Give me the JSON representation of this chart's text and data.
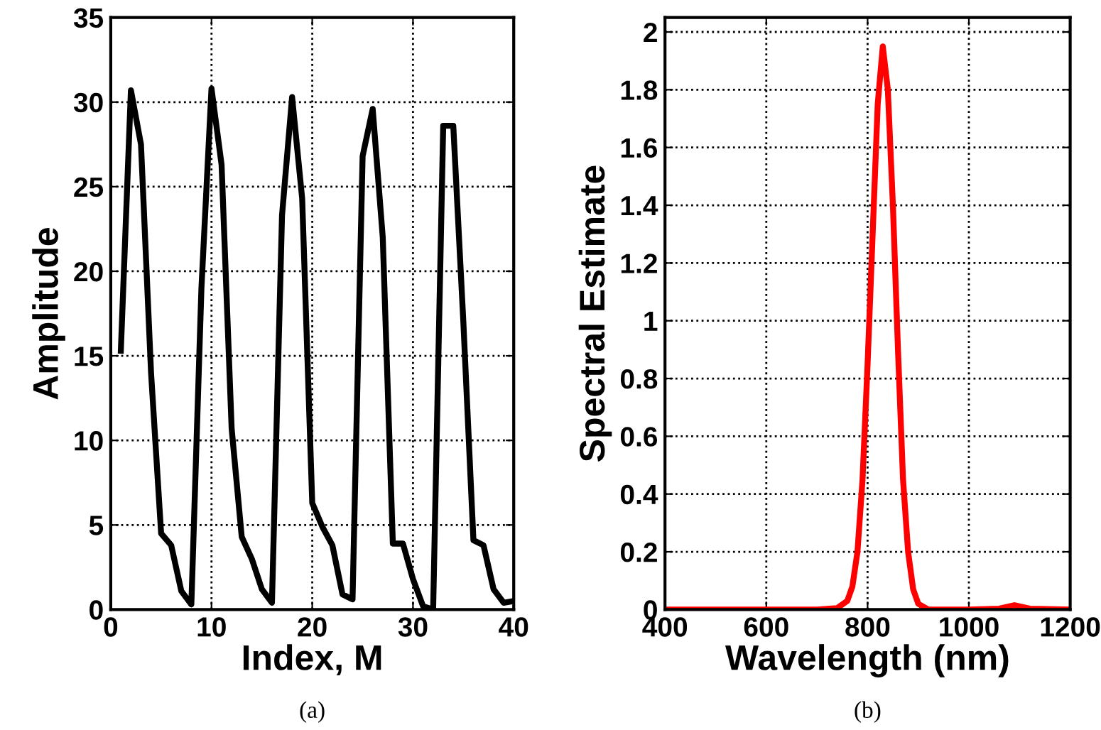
{
  "chart_data": [
    {
      "type": "line",
      "xlabel": "Index, M",
      "ylabel": "Amplitude",
      "annotations": [
        "(a)"
      ],
      "xlim": [
        0,
        40
      ],
      "ylim": [
        0,
        35
      ],
      "xticks": [
        0,
        10,
        20,
        30,
        40
      ],
      "yticks": [
        0,
        5,
        10,
        15,
        20,
        25,
        30,
        35
      ],
      "grid": true,
      "line_style": "solid",
      "series": [
        {
          "color": "#000000",
          "x": [
            1,
            2,
            3,
            4,
            5,
            6,
            7,
            8,
            9,
            10,
            11,
            12,
            13,
            14,
            15,
            16,
            17,
            18,
            19,
            20,
            21,
            22,
            23,
            24,
            25,
            26,
            27,
            28,
            29,
            30,
            31,
            32,
            33,
            34,
            35,
            36,
            37,
            38,
            39,
            40
          ],
          "values": [
            15.3,
            30.7,
            27.5,
            14,
            4.5,
            3.8,
            1.1,
            0.3,
            19,
            30.8,
            26.3,
            10.7,
            4.3,
            3,
            1.2,
            0.4,
            23.3,
            30.3,
            24.3,
            6.3,
            4.9,
            3.8,
            0.9,
            0.6,
            26.8,
            29.6,
            22,
            3.9,
            3.9,
            1.8,
            0.2,
            0,
            28.6,
            28.6,
            17,
            4.1,
            3.8,
            1.2,
            0.4,
            0.5
          ]
        }
      ]
    },
    {
      "type": "line",
      "xlabel": "Wavelength (nm)",
      "ylabel": "Spectral Estimate",
      "annotations": [
        "(b)"
      ],
      "xlim": [
        400,
        1200
      ],
      "ylim": [
        0,
        2.05
      ],
      "xticks": [
        400,
        600,
        800,
        1000,
        1200
      ],
      "yticks": [
        0,
        0.2,
        0.4,
        0.6,
        0.8,
        1,
        1.2,
        1.4,
        1.6,
        1.8,
        2
      ],
      "grid": true,
      "line_style": "solid",
      "series": [
        {
          "color": "#ff0000",
          "x": [
            400,
            700,
            740,
            760,
            770,
            780,
            790,
            800,
            810,
            820,
            830,
            840,
            850,
            860,
            870,
            880,
            890,
            900,
            920,
            1000,
            1060,
            1090,
            1120,
            1200
          ],
          "values": [
            0,
            0,
            0.005,
            0.03,
            0.08,
            0.2,
            0.45,
            0.85,
            1.3,
            1.75,
            1.95,
            1.8,
            1.4,
            0.9,
            0.45,
            0.2,
            0.07,
            0.02,
            0,
            0,
            0.003,
            0.015,
            0.003,
            0
          ]
        }
      ]
    }
  ]
}
